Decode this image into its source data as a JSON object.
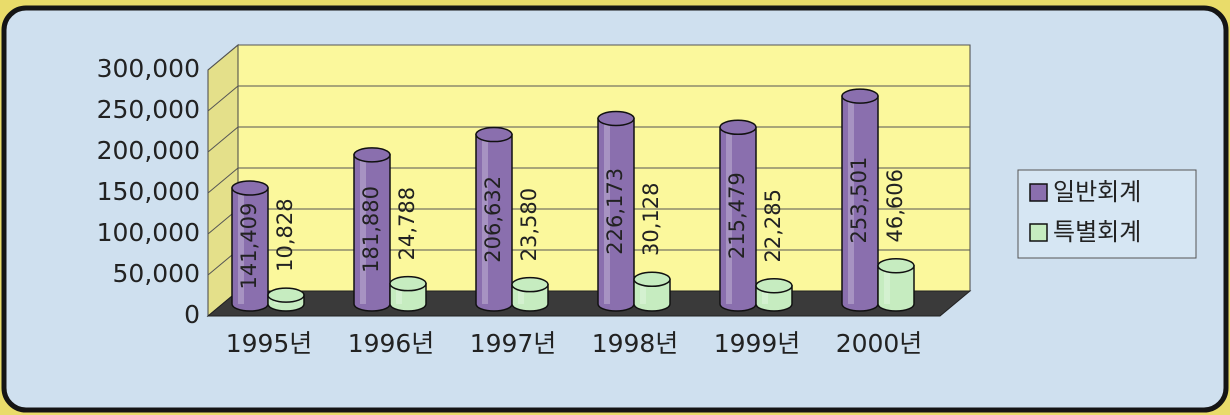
{
  "chart_data": {
    "type": "bar3d",
    "categories": [
      "1995년",
      "1996년",
      "1997년",
      "1998년",
      "1999년",
      "2000년"
    ],
    "series": [
      {
        "name": "일반회계",
        "color": "#8a6fae",
        "values": [
          141409,
          181880,
          206632,
          226173,
          215479,
          253501
        ],
        "value_labels": [
          "141,409",
          "181,880",
          "206,632",
          "226,173",
          "215,479",
          "253,501"
        ]
      },
      {
        "name": "특별회계",
        "color": "#c6ecc0",
        "values": [
          10828,
          24788,
          23580,
          30128,
          22285,
          46606
        ],
        "value_labels": [
          "10,828",
          "24,788",
          "23,580",
          "30,128",
          "22,285",
          "46,606"
        ]
      }
    ],
    "ylim": [
      0,
      300000
    ],
    "yticks": [
      0,
      {
        "value": 50000,
        "label": "50,000"
      },
      {
        "value": 100000,
        "label": "100,000"
      },
      {
        "value": 150000,
        "label": "150,000"
      },
      {
        "value": 200000,
        "label": "200,000"
      },
      {
        "value": 250000,
        "label": "250,000"
      },
      {
        "value": 300000,
        "label": "300,000"
      }
    ],
    "grid": true,
    "legend": "right"
  }
}
